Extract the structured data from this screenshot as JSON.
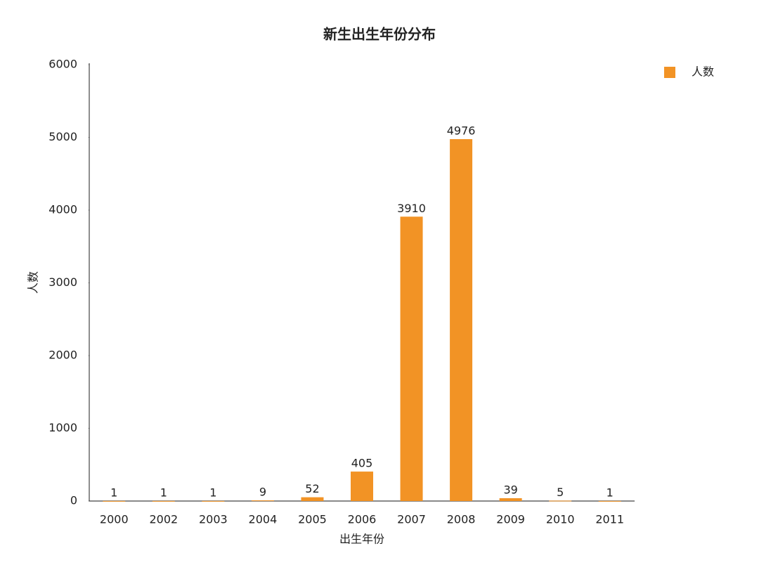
{
  "chart_data": {
    "type": "bar",
    "title": "新生出生年份分布",
    "x_label": "出生年份",
    "y_label": "人数",
    "categories": [
      "2000",
      "2002",
      "2003",
      "2004",
      "2005",
      "2006",
      "2007",
      "2008",
      "2009",
      "2010",
      "2011"
    ],
    "series": [
      {
        "name": "人数",
        "color": "#f29325",
        "values": [
          1,
          1,
          1,
          9,
          52,
          405,
          3910,
          4976,
          39,
          5,
          1
        ]
      }
    ],
    "ylim": [
      0,
      6000
    ],
    "yticks": [
      0,
      1000,
      2000,
      3000,
      4000,
      5000,
      6000
    ],
    "legend": "top-right"
  }
}
